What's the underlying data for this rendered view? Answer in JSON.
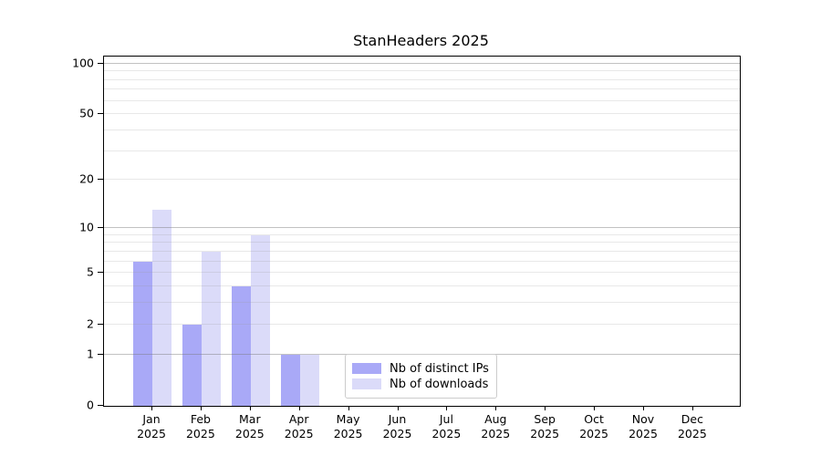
{
  "chart_data": {
    "type": "bar",
    "title": "StanHeaders 2025",
    "categories": [
      "Jan 2025",
      "Feb 2025",
      "Mar 2025",
      "Apr 2025",
      "May 2025",
      "Jun 2025",
      "Jul 2025",
      "Aug 2025",
      "Sep 2025",
      "Oct 2025",
      "Nov 2025",
      "Dec 2025"
    ],
    "series": [
      {
        "name": "Nb of distinct IPs",
        "color": "#a9a9f7",
        "values": [
          6,
          2,
          4,
          1,
          0,
          0,
          0,
          0,
          0,
          0,
          0,
          0
        ]
      },
      {
        "name": "Nb of downloads",
        "color": "#dbdbf9",
        "values": [
          13,
          7,
          9,
          1,
          0,
          0,
          0,
          0,
          0,
          0,
          0,
          0
        ]
      }
    ],
    "yscale": "log1p",
    "ylim": [
      0,
      110
    ],
    "ytick_labels": [
      0,
      1,
      2,
      5,
      10,
      20,
      50,
      100
    ],
    "major_gridlines": [
      1,
      10,
      100
    ],
    "minor_gridlines": [
      2,
      3,
      4,
      5,
      6,
      7,
      8,
      9,
      20,
      30,
      40,
      50,
      60,
      70,
      80,
      90
    ],
    "grid": "on",
    "xlabel": "",
    "ylabel": "",
    "legend_position": "lower center"
  }
}
